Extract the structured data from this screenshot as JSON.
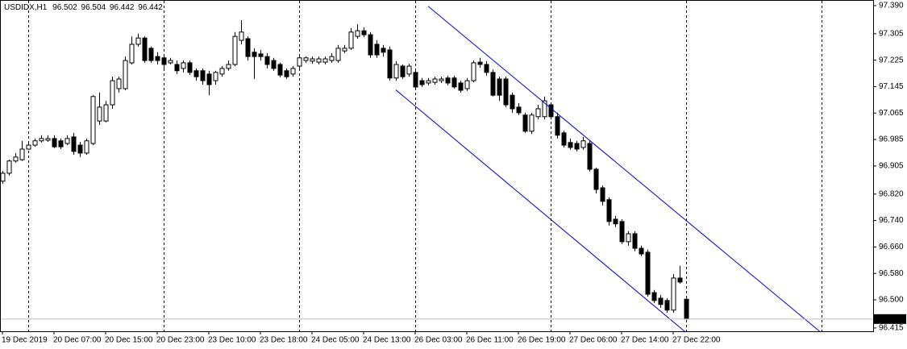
{
  "chart_data": {
    "type": "candlestick",
    "symbol": "USDIDX,H1",
    "categories": [
      "19 Dec 2019",
      null,
      null,
      null,
      null,
      null,
      null,
      null,
      "20 Dec 07:00",
      null,
      null,
      null,
      null,
      null,
      null,
      null,
      "20 Dec 15:00",
      null,
      null,
      null,
      null,
      null,
      null,
      null,
      "20 Dec 23:00",
      null,
      null,
      null,
      null,
      null,
      null,
      null,
      "23 Dec 10:00",
      null,
      null,
      null,
      null,
      null,
      null,
      null,
      "23 Dec 18:00",
      null,
      null,
      null,
      null,
      null,
      null,
      null,
      "24 Dec 05:00",
      null,
      null,
      null,
      null,
      null,
      null,
      null,
      "24 Dec 13:00",
      null,
      null,
      null,
      null,
      null,
      null,
      null,
      "26 Dec 03:00",
      null,
      null,
      null,
      null,
      null,
      null,
      null,
      "26 Dec 11:00",
      null,
      null,
      null,
      null,
      null,
      null,
      null,
      "26 Dec 19:00",
      null,
      null,
      null,
      null,
      null,
      null,
      null,
      "27 Dec 06:00",
      null,
      null,
      null,
      null,
      null,
      null,
      null,
      "27 Dec 14:00",
      null,
      null,
      null,
      null,
      null,
      null,
      null,
      "27 Dec 22:00",
      null,
      null
    ],
    "open": [
      96.859,
      96.883,
      96.92,
      96.924,
      96.956,
      96.968,
      96.981,
      96.983,
      96.988,
      96.981,
      96.973,
      96.993,
      96.968,
      96.944,
      96.973,
      97.041,
      97.041,
      97.09,
      97.139,
      97.139,
      97.217,
      97.273,
      97.292,
      97.261,
      97.236,
      97.232,
      97.217,
      97.212,
      97.2,
      97.217,
      97.193,
      97.193,
      97.183,
      97.163,
      97.183,
      97.2,
      97.212,
      97.285,
      97.29,
      97.249,
      97.244,
      97.236,
      97.224,
      97.212,
      97.193,
      97.183,
      97.207,
      97.224,
      97.222,
      97.219,
      97.219,
      97.224,
      97.224,
      97.253,
      97.261,
      97.297,
      97.314,
      97.302,
      97.273,
      97.261,
      97.256,
      97.171,
      97.207,
      97.183,
      97.188,
      97.163,
      97.156,
      97.158,
      97.163,
      97.171,
      97.171,
      97.156,
      97.139,
      97.163,
      97.219,
      97.212,
      97.188,
      97.168,
      97.168,
      97.119,
      97.083,
      97.059,
      97.01,
      97.054,
      97.054,
      97.09,
      97.054,
      97.005,
      96.976,
      96.973,
      96.961,
      96.973,
      96.895,
      96.839,
      96.803,
      96.744,
      96.737,
      96.676,
      96.7,
      96.656,
      96.644,
      96.522,
      96.505,
      96.498,
      96.469,
      96.566,
      96.502
    ],
    "high": [
      96.89,
      96.924,
      96.944,
      96.981,
      96.976,
      96.988,
      96.998,
      96.998,
      96.998,
      96.988,
      96.998,
      97.005,
      96.978,
      96.988,
      97.119,
      97.127,
      97.102,
      97.175,
      97.175,
      97.236,
      97.297,
      97.305,
      97.297,
      97.266,
      97.249,
      97.241,
      97.232,
      97.224,
      97.224,
      97.224,
      97.2,
      97.2,
      97.193,
      97.193,
      97.207,
      97.224,
      97.31,
      97.346,
      97.297,
      97.261,
      97.256,
      97.246,
      97.232,
      97.217,
      97.2,
      97.207,
      97.241,
      97.236,
      97.236,
      97.236,
      97.236,
      97.246,
      97.271,
      97.271,
      97.322,
      97.334,
      97.324,
      97.31,
      97.285,
      97.271,
      97.266,
      97.222,
      97.212,
      97.214,
      97.197,
      97.171,
      97.171,
      97.175,
      97.175,
      97.178,
      97.178,
      97.163,
      97.171,
      97.224,
      97.232,
      97.222,
      97.197,
      97.175,
      97.175,
      97.127,
      97.095,
      97.066,
      97.066,
      97.09,
      97.115,
      97.097,
      97.066,
      97.012,
      96.988,
      96.981,
      96.993,
      96.981,
      96.9,
      96.846,
      96.81,
      96.754,
      96.744,
      96.708,
      96.708,
      96.664,
      96.652,
      96.53,
      96.515,
      96.505,
      96.578,
      96.603,
      96.504
    ],
    "low": [
      96.851,
      96.876,
      96.915,
      96.92,
      96.954,
      96.963,
      96.976,
      96.978,
      96.959,
      96.956,
      96.968,
      96.939,
      96.932,
      96.939,
      96.968,
      97.029,
      97.037,
      97.078,
      97.127,
      97.134,
      97.212,
      97.266,
      97.217,
      97.217,
      97.212,
      97.2,
      97.212,
      97.183,
      97.188,
      97.18,
      97.163,
      97.151,
      97.119,
      97.151,
      97.175,
      97.193,
      97.207,
      97.273,
      97.224,
      97.168,
      97.224,
      97.2,
      97.193,
      97.173,
      97.168,
      97.175,
      97.2,
      97.217,
      97.214,
      97.212,
      97.212,
      97.217,
      97.217,
      97.246,
      97.256,
      97.29,
      97.295,
      97.232,
      97.232,
      97.236,
      97.163,
      97.163,
      97.168,
      97.175,
      97.139,
      97.144,
      97.149,
      97.151,
      97.156,
      97.149,
      97.139,
      97.127,
      97.132,
      97.158,
      97.202,
      97.178,
      97.115,
      97.102,
      97.083,
      97.066,
      97.059,
      97.005,
      97.002,
      97.046,
      97.046,
      97.046,
      96.988,
      96.961,
      96.954,
      96.949,
      96.954,
      96.888,
      96.822,
      96.786,
      96.725,
      96.72,
      96.669,
      96.664,
      96.647,
      96.632,
      96.51,
      96.491,
      96.476,
      96.461,
      96.461,
      96.549,
      96.442
    ],
    "close": [
      96.883,
      96.92,
      96.932,
      96.956,
      96.968,
      96.981,
      96.988,
      96.988,
      96.963,
      96.963,
      96.988,
      96.949,
      96.944,
      96.981,
      97.115,
      97.083,
      97.09,
      97.163,
      97.168,
      97.224,
      97.273,
      97.292,
      97.224,
      97.224,
      97.224,
      97.212,
      97.224,
      97.193,
      97.217,
      97.188,
      97.175,
      97.163,
      97.151,
      97.188,
      97.2,
      97.212,
      97.297,
      97.31,
      97.236,
      97.236,
      97.236,
      97.212,
      97.2,
      97.18,
      97.175,
      97.2,
      97.232,
      97.232,
      97.229,
      97.229,
      97.229,
      97.236,
      97.261,
      97.261,
      97.31,
      97.314,
      97.302,
      97.241,
      97.241,
      97.249,
      97.171,
      97.212,
      97.175,
      97.207,
      97.144,
      97.151,
      97.163,
      97.168,
      97.168,
      97.156,
      97.144,
      97.134,
      97.163,
      97.217,
      97.212,
      97.188,
      97.119,
      97.119,
      97.09,
      97.078,
      97.066,
      97.01,
      97.059,
      97.078,
      97.102,
      97.054,
      96.998,
      96.968,
      96.961,
      96.956,
      96.981,
      96.895,
      96.834,
      96.798,
      96.737,
      96.73,
      96.676,
      96.7,
      96.656,
      96.639,
      96.517,
      96.498,
      96.486,
      96.469,
      96.566,
      96.554,
      96.442
    ],
    "up_color": "#ffffff",
    "down_color": "#000000",
    "xlim": [
      -0.375,
      135
    ],
    "ylim": [
      96.405,
      97.407
    ],
    "yticks": [
      {
        "value": 97.39,
        "label": "97.390"
      },
      97.305,
      97.225,
      97.145,
      97.065,
      96.985,
      96.905,
      {
        "value": 96.82,
        "label": "96.820"
      },
      {
        "value": 96.74,
        "label": "96.740"
      },
      {
        "value": 96.66,
        "label": "96.660"
      },
      {
        "value": 96.58,
        "label": "96.580"
      },
      {
        "value": 96.5,
        "label": "96.500"
      },
      96.415
    ],
    "channel": {
      "color": "#0000cd",
      "lines": [
        {
          "x": [
            61,
            106
          ],
          "y": [
            97.135,
            96.401
          ]
        },
        {
          "x": [
            66,
            127
          ],
          "y": [
            97.388,
            96.4
          ]
        }
      ]
    }
  }
}
